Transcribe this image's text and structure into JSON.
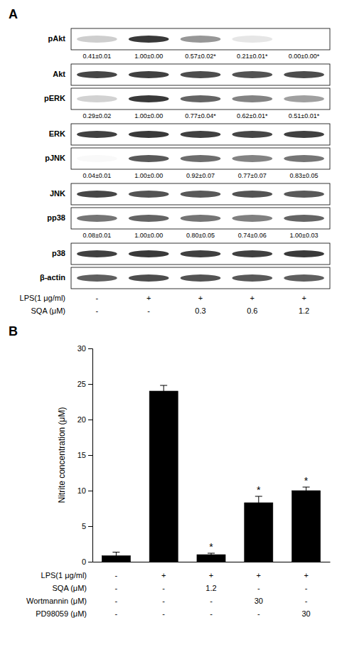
{
  "chart_data": [
    {
      "type": "blot",
      "title": "A",
      "rows": [
        {
          "label": "pAkt",
          "cells": [
            0.3,
            0.82,
            0.5,
            0.18,
            0.0
          ],
          "annotations": [
            "0.41±0.01",
            "1.00±0.00",
            "0.57±0.02*",
            "0.21±0.01*",
            "0.00±0.00*"
          ]
        },
        {
          "label": "Akt",
          "cells": [
            0.78,
            0.8,
            0.76,
            0.74,
            0.76
          ]
        },
        {
          "label": "pERK",
          "cells": [
            0.28,
            0.82,
            0.68,
            0.57,
            0.47
          ],
          "annotations": [
            "0.29±0.02",
            "1.00±0.00",
            "0.77±0.04*",
            "0.62±0.01*",
            "0.51±0.01*"
          ]
        },
        {
          "label": "ERK",
          "cells": [
            0.8,
            0.82,
            0.8,
            0.78,
            0.8
          ]
        },
        {
          "label": "pJNK",
          "cells": [
            0.05,
            0.72,
            0.65,
            0.57,
            0.62
          ],
          "annotations": [
            "0.04±0.01",
            "1.00±0.00",
            "0.92±0.07",
            "0.77±0.07",
            "0.83±0.05"
          ]
        },
        {
          "label": "JNK",
          "cells": [
            0.78,
            0.74,
            0.72,
            0.74,
            0.72
          ]
        },
        {
          "label": "pp38",
          "cells": [
            0.62,
            0.68,
            0.62,
            0.58,
            0.68
          ],
          "annotations": [
            "0.08±0.01",
            "1.00±0.00",
            "0.80±0.05",
            "0.74±0.06",
            "1.00±0.03"
          ]
        },
        {
          "label": "p38",
          "cells": [
            0.8,
            0.82,
            0.8,
            0.8,
            0.82
          ]
        },
        {
          "label": "β-actin",
          "cells": [
            0.7,
            0.76,
            0.74,
            0.72,
            0.7
          ]
        }
      ],
      "table": [
        {
          "label": "LPS(1 μg/ml)",
          "values": [
            "-",
            "+",
            "+",
            "+",
            "+"
          ]
        },
        {
          "label": "SQA (μM)",
          "values": [
            "-",
            "-",
            "0.3",
            "0.6",
            "1.2"
          ]
        }
      ]
    },
    {
      "type": "bar",
      "title": "B",
      "categories": [
        null,
        null,
        null,
        null,
        null
      ],
      "values": [
        0.85,
        24.0,
        1.0,
        8.3,
        10.0
      ],
      "errors": [
        0.5,
        0.8,
        0.2,
        0.9,
        0.5
      ],
      "color": "#000000",
      "ylim": [
        0,
        30
      ],
      "yticks": [
        0,
        5,
        10,
        15,
        20,
        25,
        30
      ],
      "ylabel": "Nitrite concentration (μM)",
      "annotations": [
        {
          "index": 2,
          "text": "*"
        },
        {
          "index": 3,
          "text": "*"
        },
        {
          "index": 4,
          "text": "*"
        }
      ],
      "table": [
        {
          "label": "LPS(1 μg/ml)",
          "values": [
            "-",
            "+",
            "+",
            "+",
            "+"
          ]
        },
        {
          "label": "SQA (μM)",
          "values": [
            "-",
            "-",
            "1.2",
            "-",
            "-"
          ]
        },
        {
          "label": "Wortmannin (μM)",
          "values": [
            "-",
            "-",
            "-",
            "30",
            "-"
          ]
        },
        {
          "label": "PD98059 (μM)",
          "values": [
            "-",
            "-",
            "-",
            "-",
            "30"
          ]
        }
      ]
    }
  ]
}
